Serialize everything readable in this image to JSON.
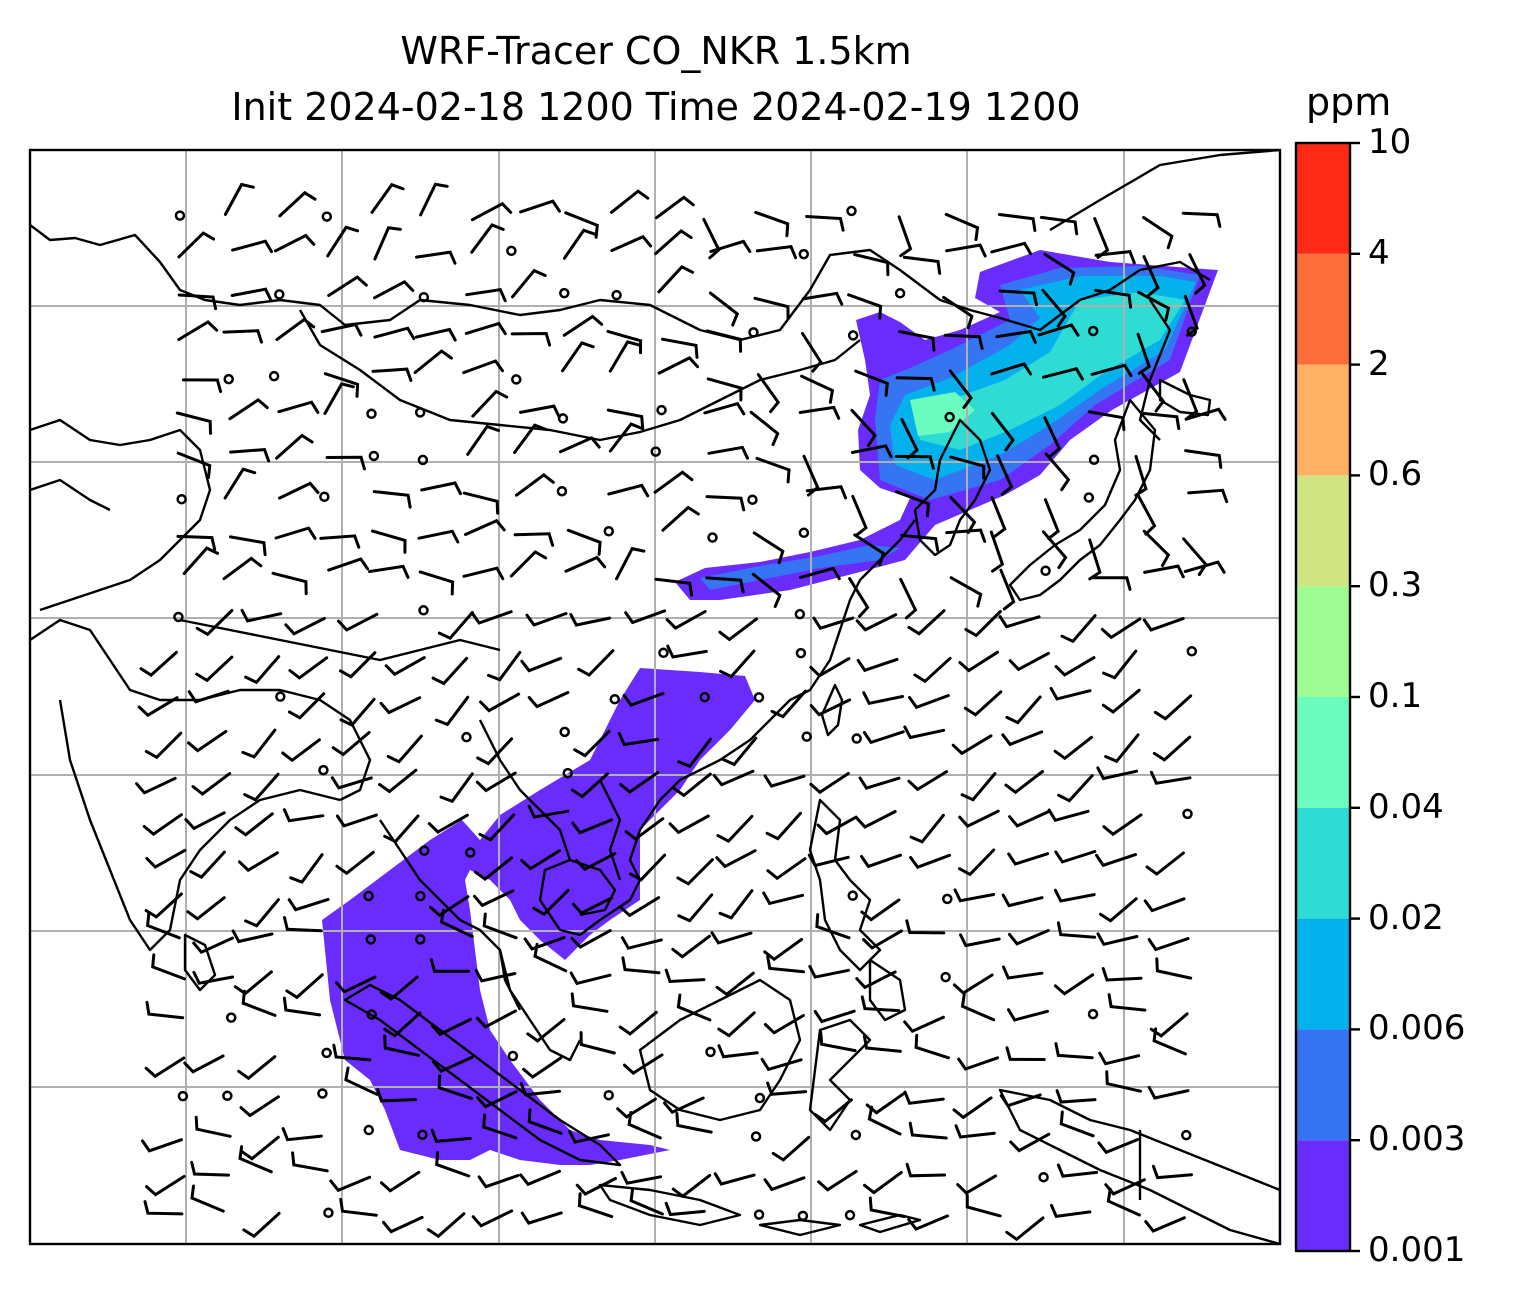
{
  "title": {
    "line1": "WRF-Tracer CO_NKR 1.5km",
    "line2": "Init 2024-02-18 1200 Time 2024-02-19 1200"
  },
  "colorbar": {
    "unit": "ppm",
    "levels": [
      "0.001",
      "0.003",
      "0.006",
      "0.02",
      "0.04",
      "0.1",
      "0.3",
      "0.6",
      "2",
      "4",
      "10"
    ],
    "colors": [
      "#6a2cfc",
      "#3574f2",
      "#03b2ec",
      "#2fdcd4",
      "#6bfcbf",
      "#9ffb93",
      "#d0e484",
      "#feb064",
      "#fe6e3b",
      "#fe2a15"
    ]
  },
  "style": {
    "grid_color": "#b0b0b0",
    "coast_color": "#000000"
  }
}
